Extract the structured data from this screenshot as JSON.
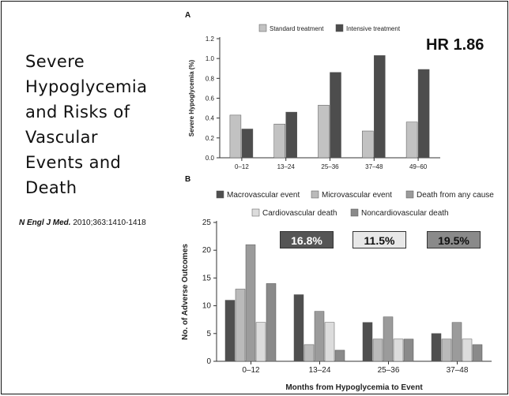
{
  "slide": {
    "title_lines": [
      "Severe",
      "Hypoglycemia",
      "and Risks of",
      "Vascular",
      "Events and",
      "Death"
    ],
    "citation": {
      "journal": "N Engl J Med.",
      "details": "2010;363:1410-1418"
    },
    "hr_label": "HR 1.86",
    "badges": [
      {
        "text": "16.8%",
        "bg": "#555555",
        "fg": "#ffffff"
      },
      {
        "text": "11.5%",
        "bg": "#e8e8e8",
        "fg": "#111111"
      },
      {
        "text": "19.5%",
        "bg": "#8a8a8a",
        "fg": "#111111"
      }
    ]
  },
  "colors": {
    "dark": "#505050",
    "light_gray": "#bdbdbd",
    "mid_gray": "#9a9a9a",
    "very_light": "#dedede",
    "noncardio": "#8c8c8c"
  },
  "chart_data": [
    {
      "panel_label": "A",
      "type": "bar",
      "categories": [
        "0–12",
        "13–24",
        "25–36",
        "37–48",
        "49–60"
      ],
      "series": [
        {
          "name": "Standard treatment",
          "values": [
            0.43,
            0.34,
            0.53,
            0.27,
            0.36
          ],
          "color": "#c2c2c2"
        },
        {
          "name": "Intensive treatment",
          "values": [
            0.29,
            0.46,
            0.86,
            1.03,
            0.89
          ],
          "color": "#4d4d4d"
        }
      ],
      "ylabel": "Severe Hypoglycemia (%)",
      "ylim": [
        0,
        1.2
      ],
      "yticks": [
        "0.0",
        "0.2",
        "0.4",
        "0.6",
        "0.8",
        "1.0",
        "1.2"
      ],
      "legend": "top",
      "grid": false
    },
    {
      "panel_label": "B",
      "type": "bar",
      "categories": [
        "0–12",
        "13–24",
        "25–36",
        "37–48"
      ],
      "series": [
        {
          "name": "Macrovascular event",
          "values": [
            11,
            12,
            7,
            5
          ],
          "color": "#4f4f4f"
        },
        {
          "name": "Microvascular event",
          "values": [
            13,
            3,
            4,
            4
          ],
          "color": "#bababa"
        },
        {
          "name": "Death from any cause",
          "values": [
            21,
            9,
            8,
            7
          ],
          "color": "#9b9b9b"
        },
        {
          "name": "Cardiovascular death",
          "values": [
            7,
            7,
            4,
            4
          ],
          "color": "#dcdcdc"
        },
        {
          "name": "Noncardiovascular death",
          "values": [
            14,
            2,
            4,
            3
          ],
          "color": "#8a8a8a"
        }
      ],
      "xlabel": "Months from Hypoglycemia to Event",
      "ylabel": "No. of Adverse Outcomes",
      "ylim": [
        0,
        25
      ],
      "yticks": [
        "0",
        "5",
        "10",
        "15",
        "20",
        "25"
      ],
      "legend": "top",
      "grid": false
    }
  ]
}
